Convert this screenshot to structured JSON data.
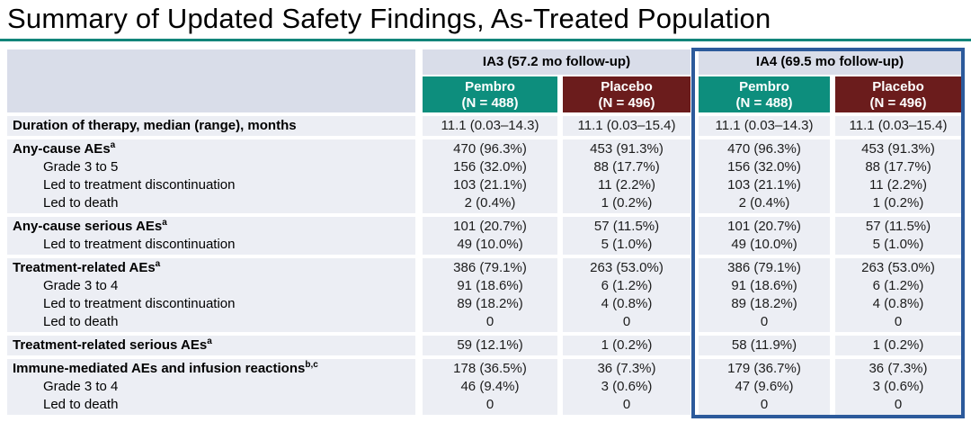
{
  "title": "Summary of Updated Safety Findings, As-Treated Population",
  "colors": {
    "teal_header": "#0D8E7D",
    "maroon_header": "#6B1C1C",
    "highlight_border": "#2C5A9B",
    "group_header_bg": "#D9DDE9",
    "row_bg": "#ECEEF4",
    "title_rule": "#12857A"
  },
  "table": {
    "column_groups": [
      {
        "label": "IA3 (57.2 mo follow-up)",
        "highlighted": false
      },
      {
        "label": "IA4 (69.5 mo follow-up)",
        "highlighted": true
      }
    ],
    "arms": [
      {
        "name": "Pembro",
        "n_label": "(N = 488)"
      },
      {
        "name": "Placebo",
        "n_label": "(N = 496)"
      }
    ],
    "sections": [
      {
        "rows": [
          {
            "label": "Duration of therapy, median (range), months",
            "sup": "",
            "bold": true,
            "indent": false,
            "values": [
              "11.1 (0.03–14.3)",
              "11.1 (0.03–15.4)",
              "11.1 (0.03–14.3)",
              "11.1 (0.03–15.4)"
            ]
          }
        ]
      },
      {
        "rows": [
          {
            "label": "Any-cause AEs",
            "sup": "a",
            "bold": true,
            "indent": false,
            "values": [
              "470 (96.3%)",
              "453 (91.3%)",
              "470 (96.3%)",
              "453 (91.3%)"
            ]
          },
          {
            "label": "Grade 3 to 5",
            "sup": "",
            "bold": false,
            "indent": true,
            "values": [
              "156 (32.0%)",
              "88 (17.7%)",
              "156 (32.0%)",
              "88 (17.7%)"
            ]
          },
          {
            "label": "Led to treatment discontinuation",
            "sup": "",
            "bold": false,
            "indent": true,
            "values": [
              "103 (21.1%)",
              "11 (2.2%)",
              "103 (21.1%)",
              "11 (2.2%)"
            ]
          },
          {
            "label": "Led to death",
            "sup": "",
            "bold": false,
            "indent": true,
            "values": [
              "2 (0.4%)",
              "1 (0.2%)",
              "2 (0.4%)",
              "1 (0.2%)"
            ]
          }
        ]
      },
      {
        "rows": [
          {
            "label": "Any-cause serious AEs",
            "sup": "a",
            "bold": true,
            "indent": false,
            "values": [
              "101 (20.7%)",
              "57 (11.5%)",
              "101 (20.7%)",
              "57 (11.5%)"
            ]
          },
          {
            "label": "Led to treatment discontinuation",
            "sup": "",
            "bold": false,
            "indent": true,
            "values": [
              "49 (10.0%)",
              "5 (1.0%)",
              "49 (10.0%)",
              "5 (1.0%)"
            ]
          }
        ]
      },
      {
        "rows": [
          {
            "label": "Treatment-related AEs",
            "sup": "a",
            "bold": true,
            "indent": false,
            "values": [
              "386 (79.1%)",
              "263 (53.0%)",
              "386 (79.1%)",
              "263 (53.0%)"
            ]
          },
          {
            "label": "Grade 3 to 4",
            "sup": "",
            "bold": false,
            "indent": true,
            "values": [
              "91 (18.6%)",
              "6 (1.2%)",
              "91 (18.6%)",
              "6 (1.2%)"
            ]
          },
          {
            "label": "Led to treatment discontinuation",
            "sup": "",
            "bold": false,
            "indent": true,
            "values": [
              "89 (18.2%)",
              "4 (0.8%)",
              "89 (18.2%)",
              "4 (0.8%)"
            ]
          },
          {
            "label": "Led to death",
            "sup": "",
            "bold": false,
            "indent": true,
            "values": [
              "0",
              "0",
              "0",
              "0"
            ]
          }
        ]
      },
      {
        "rows": [
          {
            "label": "Treatment-related serious AEs",
            "sup": "a",
            "bold": true,
            "indent": false,
            "values": [
              "59 (12.1%)",
              "1 (0.2%)",
              "58 (11.9%)",
              "1 (0.2%)"
            ]
          }
        ]
      },
      {
        "rows": [
          {
            "label": "Immune-mediated AEs and infusion reactions",
            "sup": "b,c",
            "bold": true,
            "indent": false,
            "values": [
              "178 (36.5%)",
              "36 (7.3%)",
              "179 (36.7%)",
              "36 (7.3%)"
            ]
          },
          {
            "label": "Grade 3 to 4",
            "sup": "",
            "bold": false,
            "indent": true,
            "values": [
              "46 (9.4%)",
              "3 (0.6%)",
              "47 (9.6%)",
              "3 (0.6%)"
            ]
          },
          {
            "label": "Led to death",
            "sup": "",
            "bold": false,
            "indent": true,
            "values": [
              "0",
              "0",
              "0",
              "0"
            ]
          }
        ]
      }
    ]
  }
}
